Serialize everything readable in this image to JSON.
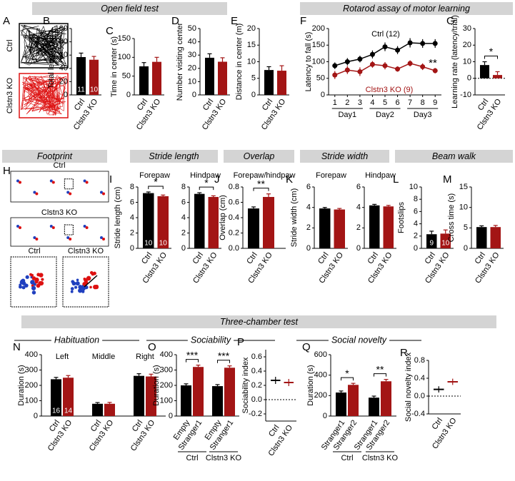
{
  "section_headers": {
    "open_field": "Open field test",
    "rotarod": "Rotarod assay of motor learning",
    "footprint": "Footprint",
    "stride_length": "Stride length",
    "overlap": "Overlap",
    "stride_width": "Stride width",
    "beam_walk": "Beam walk",
    "three_chamber": "Three-chamber test",
    "habituation": "Habituation",
    "sociability": "Sociability",
    "social_novelty": "Social novelty"
  },
  "panel_A": {
    "letter": "A",
    "labels": [
      "Ctrl",
      "Clstn3 KO"
    ]
  },
  "panel_H": {
    "letter": "H",
    "labels": [
      "Ctrl",
      "Clstn3 KO"
    ],
    "zoom_labels": [
      "Ctrl",
      "Clstn3 KO"
    ]
  },
  "chart_data": [
    {
      "type": "bar",
      "panel": "B",
      "ylabel": "Total length (m)",
      "categories": [
        "Ctrl",
        "Clstn3 KO"
      ],
      "values": [
        57,
        53
      ],
      "errors": [
        6,
        5
      ],
      "colors": [
        "#000000",
        "#a31515"
      ],
      "n": [
        11,
        10
      ],
      "ylim": [
        0,
        100
      ],
      "yticks": [
        0,
        20,
        40,
        60,
        80,
        100
      ]
    },
    {
      "type": "bar",
      "panel": "C",
      "ylabel": "Time in center (s)",
      "categories": [
        "Ctrl",
        "Clstn3 KO"
      ],
      "values": [
        76,
        88
      ],
      "errors": [
        10,
        12
      ],
      "colors": [
        "#000000",
        "#a31515"
      ],
      "ylim": [
        0,
        150
      ],
      "yticks": [
        0,
        50,
        100,
        150
      ]
    },
    {
      "type": "bar",
      "panel": "D",
      "ylabel": "Number visiting center",
      "categories": [
        "Ctrl",
        "Clstn3 KO"
      ],
      "values": [
        28,
        25
      ],
      "errors": [
        3,
        3
      ],
      "colors": [
        "#000000",
        "#a31515"
      ],
      "ylim": [
        0,
        50
      ],
      "yticks": [
        0,
        10,
        20,
        30,
        40,
        50
      ]
    },
    {
      "type": "bar",
      "panel": "E",
      "ylabel": "Distance in center (m)",
      "categories": [
        "Ctrl",
        "Clstn3 KO"
      ],
      "values": [
        7.5,
        7.3
      ],
      "errors": [
        1,
        1.5
      ],
      "colors": [
        "#000000",
        "#a31515"
      ],
      "ylim": [
        0,
        20
      ],
      "yticks": [
        0,
        5,
        10,
        15,
        20
      ]
    },
    {
      "type": "line",
      "panel": "F",
      "ylabel": "Latency to fall (s)",
      "x": [
        1,
        2,
        3,
        4,
        5,
        6,
        7,
        8,
        9
      ],
      "xlim": [
        0.5,
        9.5
      ],
      "xticks": [
        1,
        2,
        3,
        4,
        5,
        6,
        7,
        8,
        9
      ],
      "x_groups": [
        "Day1",
        "Day2",
        "Day3"
      ],
      "series": [
        {
          "name": "Ctrl (12)",
          "color": "#000000",
          "values": [
            88,
            100,
            108,
            122,
            145,
            135,
            157,
            155,
            155
          ],
          "errors": [
            10,
            11,
            10,
            12,
            13,
            12,
            14,
            13,
            13
          ]
        },
        {
          "name": "Clstn3 KO (9)",
          "color": "#a31515",
          "values": [
            60,
            75,
            70,
            92,
            88,
            78,
            95,
            85,
            73
          ],
          "errors": [
            12,
            12,
            13,
            10,
            11,
            8,
            9,
            10,
            8
          ]
        }
      ],
      "annotations": [
        "**"
      ],
      "ylim": [
        0,
        200
      ],
      "yticks": [
        0,
        50,
        100,
        150,
        200
      ]
    },
    {
      "type": "bar",
      "panel": "G",
      "ylabel": "Learning rate (latency/trial)",
      "categories": [
        "Ctrl",
        "Clstn3 KO"
      ],
      "values": [
        8,
        2
      ],
      "errors": [
        2,
        2
      ],
      "colors": [
        "#000000",
        "#a31515"
      ],
      "significance": "*",
      "zero_line": true,
      "ylim": [
        -10,
        30
      ],
      "yticks": [
        -10,
        0,
        10,
        20,
        30
      ]
    },
    {
      "type": "bar",
      "panel": "I",
      "subtitle": "Forepaw",
      "ylabel": "Stride length (cm)",
      "categories": [
        "Ctrl",
        "Clstn3 KO"
      ],
      "values": [
        7.2,
        6.8
      ],
      "errors": [
        0.15,
        0.15
      ],
      "colors": [
        "#000000",
        "#a31515"
      ],
      "n": [
        10,
        10
      ],
      "significance": "*",
      "ylim": [
        0,
        8
      ],
      "yticks": [
        0,
        2,
        4,
        6,
        8
      ]
    },
    {
      "type": "bar",
      "subtitle": "Hindpaw",
      "categories": [
        "Ctrl",
        "Clstn3 KO"
      ],
      "values": [
        7.1,
        6.7
      ],
      "errors": [
        0.15,
        0.15
      ],
      "colors": [
        "#000000",
        "#a31515"
      ],
      "significance": "*",
      "ylim": [
        0,
        8
      ],
      "yticks": [
        0,
        2,
        4,
        6,
        8
      ]
    },
    {
      "type": "bar",
      "panel": "J",
      "subtitle": "Forepaw/hindpaw",
      "ylabel": "Overlap (cm)",
      "categories": [
        "Ctrl",
        "Clstn3 KO"
      ],
      "values": [
        0.52,
        0.67
      ],
      "errors": [
        0.02,
        0.04
      ],
      "colors": [
        "#000000",
        "#a31515"
      ],
      "significance": "**",
      "ylim": [
        0,
        0.8
      ],
      "yticks": [
        {
          "value": 0,
          "label": "0.0"
        },
        0.2,
        0.4,
        0.6,
        0.8
      ]
    },
    {
      "type": "bar",
      "panel": "K",
      "subtitle": "Forepaw",
      "ylabel": "Stride width (cm)",
      "categories": [
        "Ctrl",
        "Clstn3 KO"
      ],
      "values": [
        3.9,
        3.8
      ],
      "errors": [
        0.1,
        0.1
      ],
      "colors": [
        "#000000",
        "#a31515"
      ],
      "ylim": [
        0,
        6
      ],
      "yticks": [
        0,
        2,
        4,
        6
      ]
    },
    {
      "type": "bar",
      "subtitle": "Hindpaw",
      "categories": [
        "Ctrl",
        "Clstn3 KO"
      ],
      "values": [
        4.2,
        4.1
      ],
      "errors": [
        0.1,
        0.1
      ],
      "colors": [
        "#000000",
        "#a31515"
      ],
      "ylim": [
        0,
        6
      ],
      "yticks": [
        0,
        2,
        4,
        6
      ]
    },
    {
      "type": "bar",
      "panel": "L",
      "ylabel": "Footslips",
      "categories": [
        "Ctrl",
        "Clstn3 KO"
      ],
      "values": [
        2.3,
        2.4
      ],
      "errors": [
        0.5,
        0.6
      ],
      "colors": [
        "#000000",
        "#a31515"
      ],
      "n": [
        9,
        10
      ],
      "ylim": [
        0,
        10
      ],
      "yticks": [
        0,
        2,
        4,
        6,
        8,
        10
      ]
    },
    {
      "type": "bar",
      "panel": "M",
      "ylabel": "Cross time (s)",
      "categories": [
        "Ctrl",
        "Clstn3 KO"
      ],
      "values": [
        5.2,
        5.2
      ],
      "errors": [
        0.3,
        0.4
      ],
      "colors": [
        "#000000",
        "#a31515"
      ],
      "ylim": [
        0,
        15
      ],
      "yticks": [
        0,
        5,
        10,
        15
      ]
    },
    {
      "type": "bar",
      "panel": "N",
      "ylabel": "Duration (s)",
      "groups": [
        "Left",
        "Middle",
        "Right"
      ],
      "group_label_position": "top",
      "series": [
        {
          "name": "Ctrl",
          "color": "#000000",
          "values": [
            240,
            80,
            262
          ],
          "errors": [
            12,
            8,
            14
          ]
        },
        {
          "name": "Clstn3 KO",
          "color": "#a31515",
          "values": [
            250,
            80,
            258
          ],
          "errors": [
            14,
            9,
            15
          ]
        }
      ],
      "n": [
        16,
        14
      ],
      "ylim": [
        0,
        400
      ],
      "yticks": [
        0,
        100,
        200,
        300,
        400
      ]
    },
    {
      "type": "bar",
      "panel": "O",
      "ylabel": "Duration (s)",
      "groups": [
        "Ctrl",
        "Clstn3 KO"
      ],
      "group_label_position": "bottom",
      "series": [
        {
          "name": "Empty",
          "color": "#000000",
          "values": [
            200,
            195
          ],
          "errors": [
            10,
            10
          ]
        },
        {
          "name": "Stranger1",
          "color": "#a31515",
          "values": [
            320,
            315
          ],
          "errors": [
            12,
            12
          ]
        }
      ],
      "significance": [
        "***",
        "***"
      ],
      "ylim": [
        0,
        400
      ],
      "yticks": [
        0,
        100,
        200,
        300,
        400
      ]
    },
    {
      "type": "dot",
      "panel": "P",
      "ylabel": "Sociability index",
      "categories": [
        "Ctrl",
        "Clstn3 KO"
      ],
      "values": [
        0.27,
        0.24
      ],
      "errors": [
        0.05,
        0.05
      ],
      "colors": [
        "#000000",
        "#a31515"
      ],
      "zero_line": true,
      "ylim": [
        -0.3,
        0.7
      ],
      "yticks": [
        -0.2,
        {
          "value": 0,
          "label": "0.0"
        },
        0.2,
        0.4,
        0.6
      ]
    },
    {
      "type": "bar",
      "panel": "Q",
      "ylabel": "Duration (s)",
      "groups": [
        "Ctrl",
        "Clstn3 KO"
      ],
      "group_label_position": "bottom",
      "series": [
        {
          "name": "Stranger1",
          "color": "#000000",
          "values": [
            230,
            180
          ],
          "errors": [
            15,
            15
          ]
        },
        {
          "name": "Stranger2",
          "color": "#a31515",
          "values": [
            305,
            340
          ],
          "errors": [
            15,
            18
          ]
        }
      ],
      "significance": [
        "*",
        "**"
      ],
      "ylim": [
        0,
        600
      ],
      "yticks": [
        0,
        200,
        400,
        600
      ]
    },
    {
      "type": "dot",
      "panel": "R",
      "ylabel": "Social novelty index",
      "categories": [
        "Ctrl",
        "Clstn3 KO"
      ],
      "values": [
        0.15,
        0.32
      ],
      "errors": [
        0.07,
        0.07
      ],
      "colors": [
        "#000000",
        "#a31515"
      ],
      "zero_line": true,
      "ylim": [
        -0.4,
        0.8
      ],
      "yticks": [
        -0.4,
        {
          "value": 0,
          "label": "0.0"
        },
        0.4,
        0.8
      ]
    }
  ]
}
